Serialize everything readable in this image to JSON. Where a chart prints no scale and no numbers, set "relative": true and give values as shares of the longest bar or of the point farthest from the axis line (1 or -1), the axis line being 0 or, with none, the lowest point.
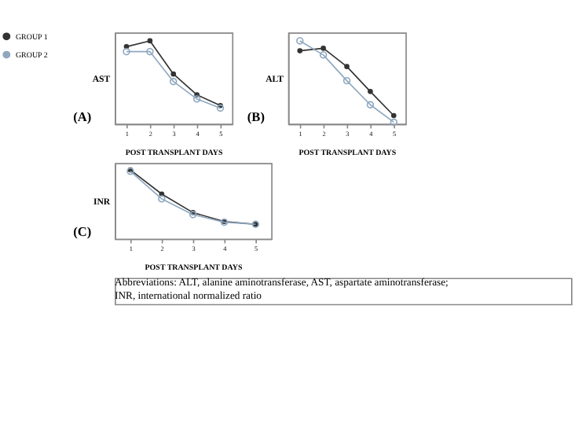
{
  "chart_data": [
    {
      "type": "line",
      "relative": true,
      "ylabel": "AST",
      "xlabel": "POST TRANSPLANT DAYS",
      "categories": [
        "1",
        "2",
        "3",
        "4",
        "5"
      ],
      "marker": "circle",
      "legend": "left",
      "grid": false,
      "annotations": [
        "(A)"
      ],
      "series": [
        {
          "name": "GROUP 1",
          "color": "#333333",
          "values": [
            0.93,
            1,
            0.6,
            0.35,
            0.22
          ]
        },
        {
          "name": "GROUP 2",
          "color": "#8fa8c0",
          "values": [
            0.87,
            0.87,
            0.51,
            0.3,
            0.19
          ]
        }
      ]
    },
    {
      "type": "line",
      "relative": true,
      "ylabel": "ALT",
      "xlabel": "POST TRANSPLANT DAYS",
      "categories": [
        "1",
        "2",
        "3",
        "4",
        "5"
      ],
      "marker": "circle",
      "legend": "left",
      "grid": false,
      "annotations": [
        "(B)"
      ],
      "series": [
        {
          "name": "GROUP 1",
          "color": "#333333",
          "values": [
            0.88,
            0.91,
            0.69,
            0.39,
            0.1
          ]
        },
        {
          "name": "GROUP 2",
          "color": "#8fa8c0",
          "values": [
            1,
            0.83,
            0.52,
            0.23,
            0.02
          ]
        }
      ]
    },
    {
      "type": "line",
      "relative": true,
      "ylabel": "INR",
      "xlabel": "POST TRANSPLANT DAYS",
      "categories": [
        "1",
        "2",
        "3",
        "4",
        "5"
      ],
      "marker": "circle",
      "legend": "left",
      "grid": false,
      "annotations": [
        "(C)",
        "Abbreviations: ALT, alanine aminotransferase, AST, aspartate aminotransferase; INR, international normalized ratio"
      ],
      "series": [
        {
          "name": "GROUP 1",
          "color": "#333333",
          "values": [
            1,
            0.65,
            0.38,
            0.25,
            0.21
          ]
        },
        {
          "name": "GROUP 2",
          "color": "#8fa8c0",
          "values": [
            0.98,
            0.58,
            0.35,
            0.24,
            0.21
          ]
        }
      ]
    }
  ]
}
